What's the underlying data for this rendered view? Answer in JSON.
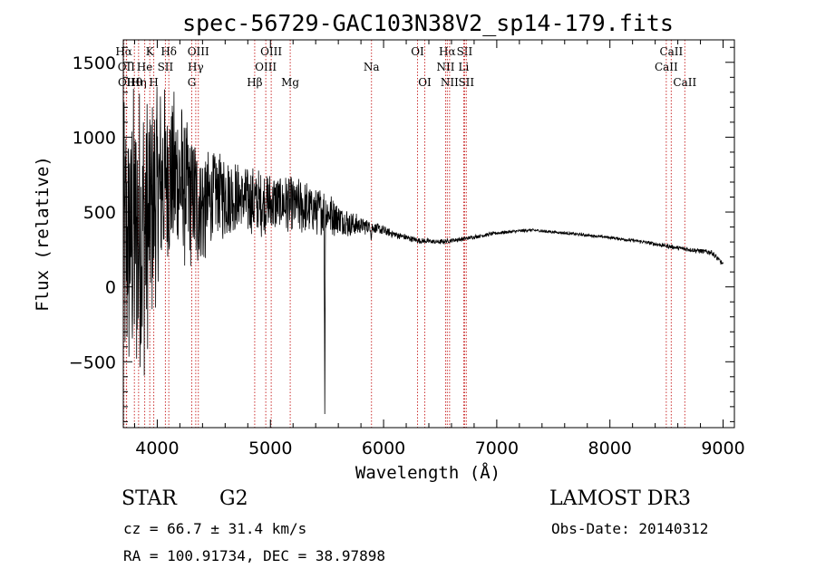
{
  "chart_data": {
    "type": "line",
    "title": "spec-56729-GAC103N38V2_sp14-179.fits",
    "xlabel": "Wavelength (Å)",
    "ylabel": "Flux (relative)",
    "xlim": [
      3700,
      9100
    ],
    "ylim": [
      -940,
      1650
    ],
    "x_ticks": [
      4000,
      5000,
      6000,
      7000,
      8000,
      9000
    ],
    "x_tick_labels": [
      "4000",
      "5000",
      "6000",
      "7000",
      "8000",
      "9000"
    ],
    "y_ticks": [
      -500,
      0,
      500,
      1000,
      1500
    ],
    "y_tick_labels": [
      "−500",
      "0",
      "500",
      "1000",
      "1500"
    ],
    "spectrum_anchors": {
      "x": [
        3700,
        3800,
        3900,
        4000,
        4100,
        4200,
        4300,
        4400,
        4500,
        4700,
        4900,
        5100,
        5300,
        5500,
        5700,
        5900,
        6100,
        6300,
        6500,
        6700,
        7000,
        7300,
        7600,
        8000,
        8300,
        8600,
        8900,
        9000
      ],
      "y": [
        300,
        350,
        380,
        650,
        750,
        700,
        600,
        520,
        620,
        600,
        560,
        560,
        530,
        500,
        420,
        400,
        350,
        310,
        300,
        320,
        360,
        380,
        360,
        330,
        300,
        260,
        230,
        150
      ]
    },
    "spectrum_noise": [
      900,
      1000,
      950,
      700,
      600,
      550,
      500,
      420,
      320,
      250,
      220,
      200,
      180,
      150,
      90,
      40,
      25,
      20,
      18,
      15,
      12,
      10,
      10,
      10,
      12,
      15,
      18,
      18
    ],
    "absorption_features": [
      {
        "x": 5480,
        "depth": 1300
      },
      {
        "x": 5892,
        "depth": 80
      }
    ],
    "lines": [
      {
        "label": "Hα",
        "wavelength": 3705,
        "row": 1
      },
      {
        "label": "OII",
        "wavelength": 3727,
        "row": 2
      },
      {
        "label": "OII",
        "wavelength": 3729,
        "row": 3
      },
      {
        "label": "Hθ",
        "wavelength": 3798,
        "row": 3
      },
      {
        "label": "Hη",
        "wavelength": 3835,
        "row": 3
      },
      {
        "label": "K",
        "wavelength": 3934,
        "row": 1
      },
      {
        "label": "He",
        "wavelength": 3889,
        "row": 2
      },
      {
        "label": "H",
        "wavelength": 3969,
        "row": 3
      },
      {
        "label": "Hδ",
        "wavelength": 4102,
        "row": 1
      },
      {
        "label": "SII",
        "wavelength": 4072,
        "row": 2
      },
      {
        "label": "OIII",
        "wavelength": 4363,
        "row": 1
      },
      {
        "label": "Hγ",
        "wavelength": 4340,
        "row": 2
      },
      {
        "label": "G",
        "wavelength": 4305,
        "row": 3
      },
      {
        "label": "Hβ",
        "wavelength": 4861,
        "row": 3
      },
      {
        "label": "OIII",
        "wavelength": 5007,
        "row": 1
      },
      {
        "label": "OIII",
        "wavelength": 4959,
        "row": 2
      },
      {
        "label": "Mg",
        "wavelength": 5175,
        "row": 3
      },
      {
        "label": "Na",
        "wavelength": 5893,
        "row": 2
      },
      {
        "label": "OI",
        "wavelength": 6300,
        "row": 1
      },
      {
        "label": "OI",
        "wavelength": 6364,
        "row": 3
      },
      {
        "label": "Hα",
        "wavelength": 6563,
        "row": 1
      },
      {
        "label": "NII",
        "wavelength": 6548,
        "row": 2
      },
      {
        "label": "NII",
        "wavelength": 6583,
        "row": 3
      },
      {
        "label": "SII",
        "wavelength": 6716,
        "row": 1
      },
      {
        "label": "Li",
        "wavelength": 6708,
        "row": 2
      },
      {
        "label": "SII",
        "wavelength": 6731,
        "row": 3
      },
      {
        "label": "CaII",
        "wavelength": 8542,
        "row": 1
      },
      {
        "label": "CaII",
        "wavelength": 8498,
        "row": 2
      },
      {
        "label": "CaII",
        "wavelength": 8662,
        "row": 3
      }
    ],
    "line_color": "#cc3333",
    "spectrum_color": "#000000",
    "grid": false
  },
  "info": {
    "object_class": "STAR",
    "subclass": "G2",
    "survey": "LAMOST DR3",
    "redshift_line": "cz = 66.7 ± 31.4 km/s",
    "obs_date_line": "Obs-Date: 20140312",
    "coords_line": "RA = 100.91734, DEC =  38.97898"
  }
}
